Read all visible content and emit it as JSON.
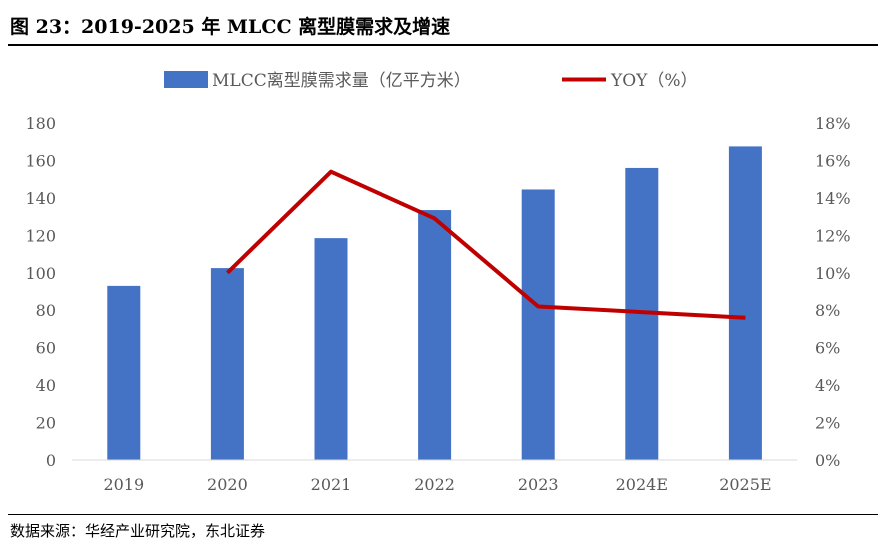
{
  "title": "图 23：2019-2025 年 MLCC 离型膜需求及增速",
  "source": "数据来源：华经产业研究院，东北证券",
  "chart_data": {
    "type": "bar+line",
    "categories": [
      "2019",
      "2020",
      "2021",
      "2022",
      "2023",
      "2024E",
      "2025E"
    ],
    "series": [
      {
        "name": "MLCC离型膜需求量（亿平方米）",
        "type": "bar",
        "axis": "left",
        "color": "#4472C4",
        "values": [
          93,
          102.5,
          118.5,
          133.5,
          144.5,
          156,
          167.5
        ]
      },
      {
        "name": "YOY（%）",
        "type": "line",
        "axis": "right",
        "color": "#C00000",
        "values": [
          null,
          10.0,
          15.4,
          12.9,
          8.2,
          7.9,
          7.6
        ]
      }
    ],
    "left_axis": {
      "ylim": [
        0,
        180
      ],
      "ticks": [
        "0",
        "20",
        "40",
        "60",
        "80",
        "100",
        "120",
        "140",
        "160",
        "180"
      ]
    },
    "right_axis": {
      "ylim": [
        0,
        18
      ],
      "ticks": [
        "0%",
        "2%",
        "4%",
        "6%",
        "8%",
        "10%",
        "12%",
        "14%",
        "16%",
        "18%"
      ]
    },
    "legend": "top",
    "grid": false
  }
}
